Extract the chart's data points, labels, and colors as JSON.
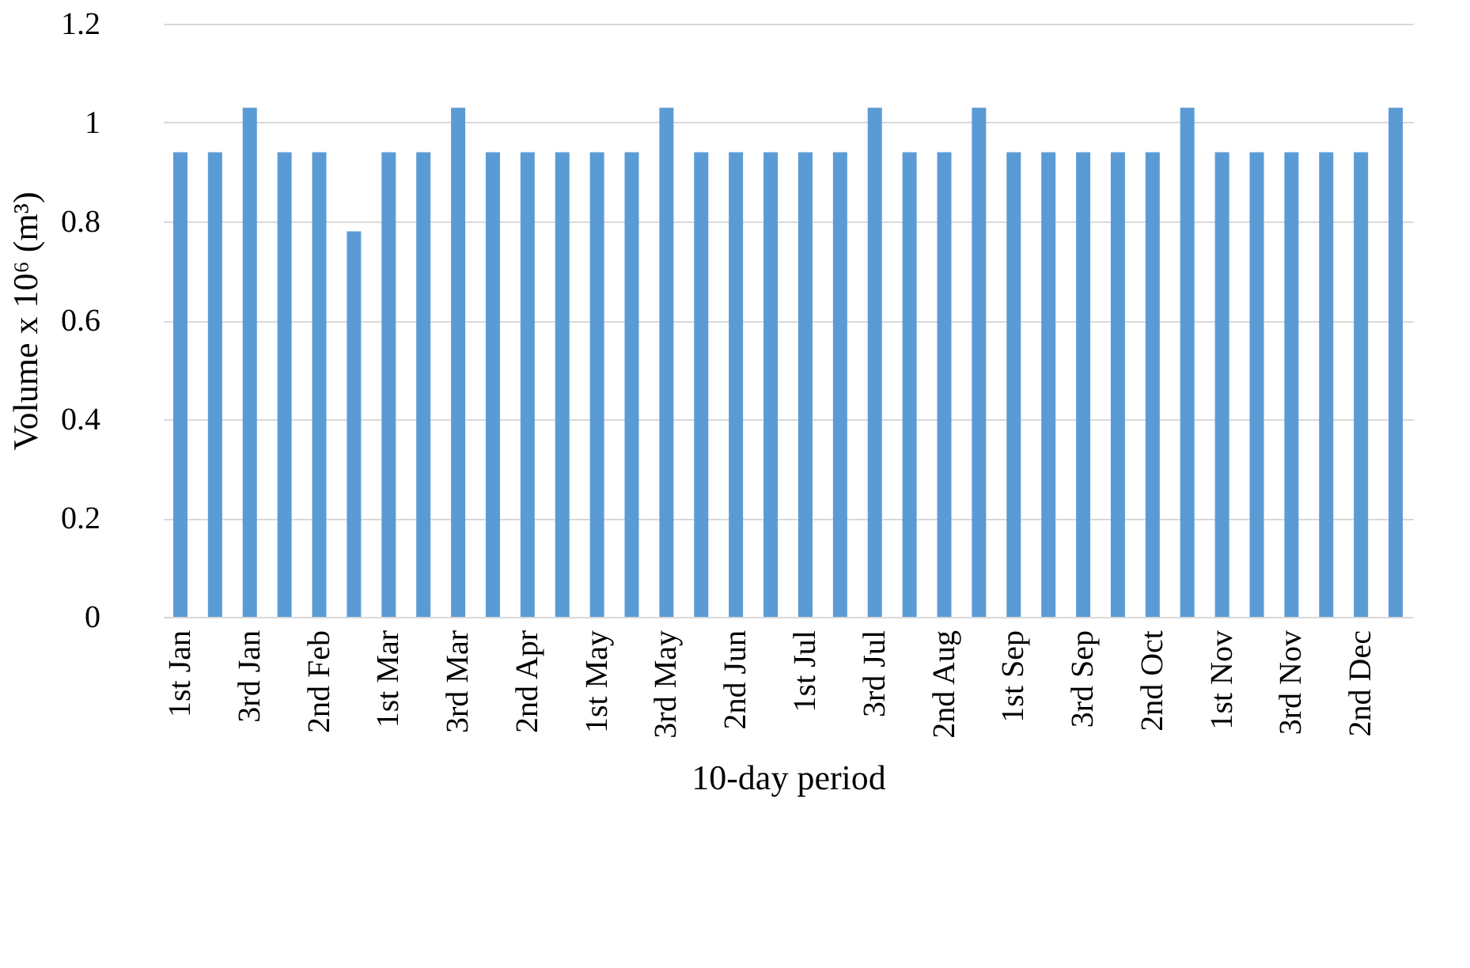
{
  "chart_data": {
    "type": "bar",
    "xlabel": "10-day period",
    "ylabel": "Volume x 10⁶ (m³)",
    "color": "#5b9bd5",
    "categories": [
      "1st Jan",
      null,
      "3rd Jan",
      null,
      "2nd Feb",
      null,
      "1st Mar",
      null,
      "3rd Mar",
      null,
      "2nd Apr",
      null,
      "1st May",
      null,
      "3rd May",
      null,
      "2nd Jun",
      null,
      "1st Jul",
      null,
      "3rd Jul",
      null,
      "2nd Aug",
      null,
      "1st Sep",
      null,
      "3rd Sep",
      null,
      "2nd Oct",
      null,
      "1st Nov",
      null,
      "3rd Nov",
      null,
      "2nd Dec",
      null
    ],
    "values": [
      0.94,
      0.94,
      1.03,
      0.94,
      0.94,
      0.78,
      0.94,
      0.94,
      1.03,
      0.94,
      0.94,
      0.94,
      0.94,
      0.94,
      1.03,
      0.94,
      0.94,
      0.94,
      0.94,
      0.94,
      1.03,
      0.94,
      0.94,
      1.03,
      0.94,
      0.94,
      0.94,
      0.94,
      0.94,
      1.03,
      0.94,
      0.94,
      0.94,
      0.94,
      0.94,
      1.03
    ],
    "ylim": [
      0,
      1.2
    ],
    "yticks": [
      0,
      0.2,
      0.4,
      0.6,
      0.8,
      1,
      1.2
    ],
    "grid": "y"
  }
}
